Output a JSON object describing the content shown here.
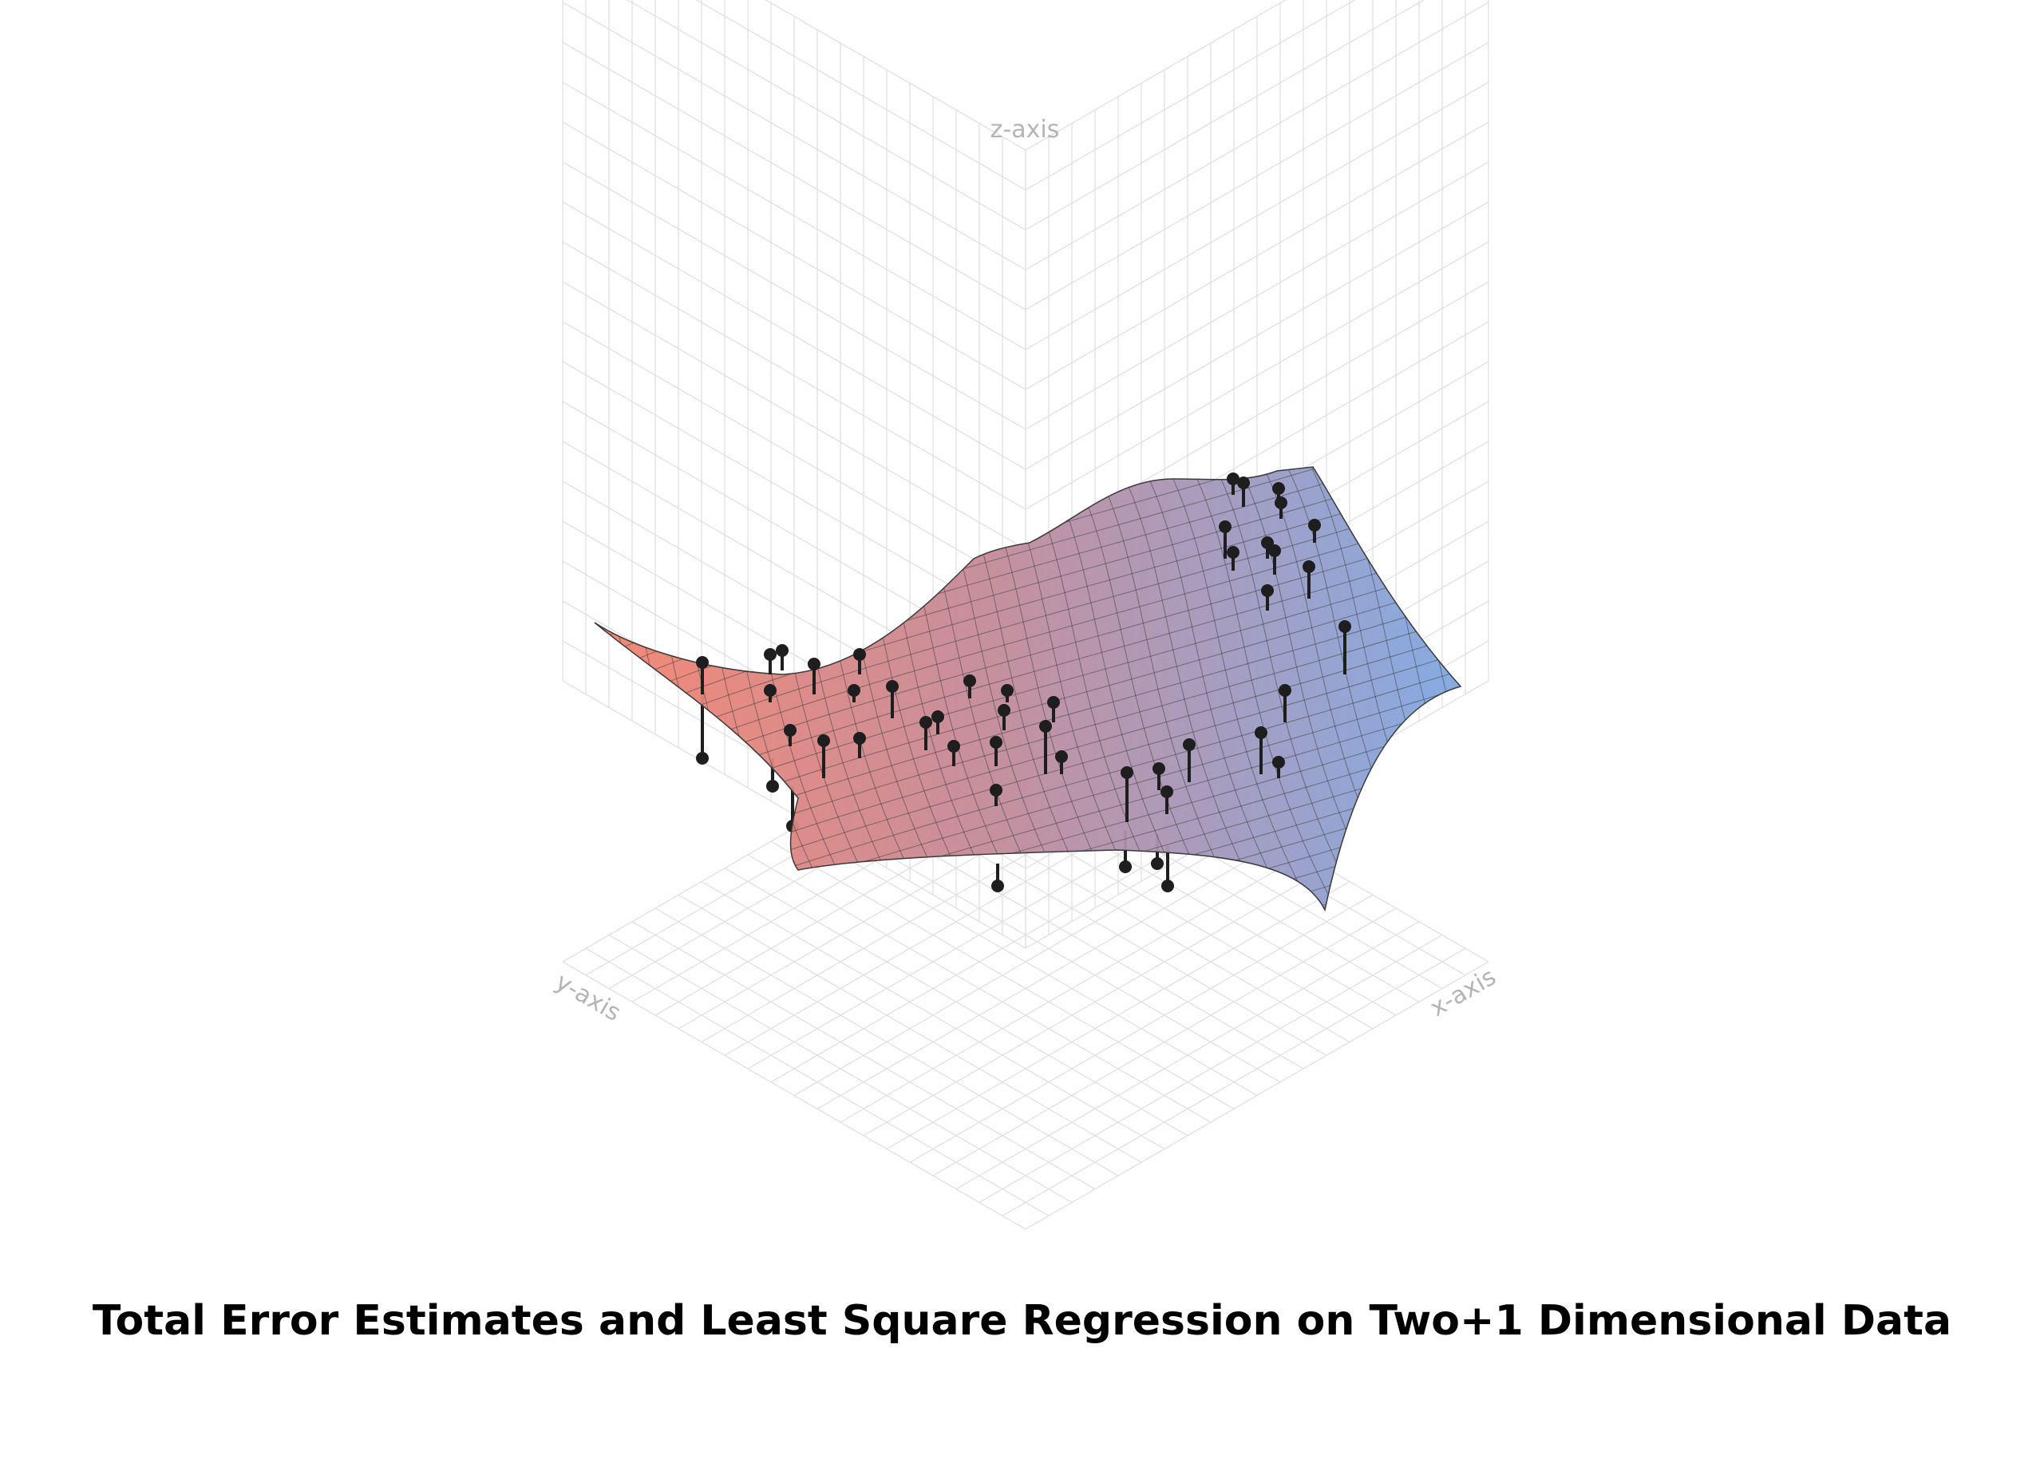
{
  "figure": {
    "caption": "Total Error Estimates and Least Square Regression on Two+1 Dimensional Data",
    "axes": {
      "x_label": "x-axis",
      "y_label": "y-axis",
      "z_label": "z-axis"
    },
    "colors": {
      "grid": "#dedede",
      "surface_low": "#f4826d",
      "surface_high": "#7fa7e2",
      "mesh_line": "#3a3a3a",
      "data_point": "#1e1e1e",
      "axis_label": "#b4b4b4"
    },
    "view": "isometric",
    "surface": "regression surface over x-y grid",
    "data_points_count": 52
  }
}
